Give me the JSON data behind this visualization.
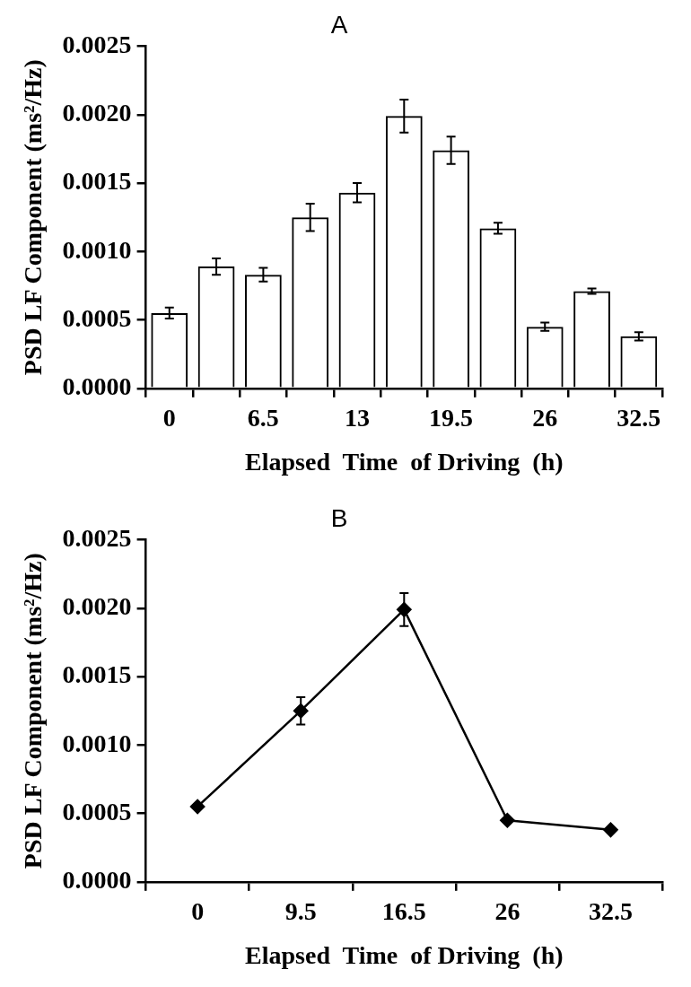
{
  "chart_data": [
    {
      "type": "bar",
      "title": "A",
      "xlabel": "Elapsed  Time  of Driving  (h)",
      "ylabel": "PSD LF Component (ms²/Hz)",
      "categories": [
        "0",
        null,
        "6.5",
        null,
        "13",
        null,
        "19.5",
        null,
        "26",
        null,
        "32.5"
      ],
      "values": [
        0.00055,
        0.00089,
        0.00083,
        0.00125,
        0.00143,
        0.00199,
        0.00174,
        0.00117,
        0.00045,
        0.00071,
        0.00038
      ],
      "errors": [
        4e-05,
        6e-05,
        5e-05,
        0.0001,
        7e-05,
        0.00012,
        0.0001,
        4e-05,
        3e-05,
        2e-05,
        3e-05
      ],
      "color": "#000000",
      "ylim": [
        0,
        0.0025
      ],
      "yticks": [
        {
          "value": 0,
          "label": "0.0000"
        },
        {
          "value": 0.0005,
          "label": "0.0005"
        },
        {
          "value": 0.001,
          "label": "0.0010"
        },
        {
          "value": 0.0015,
          "label": "0.0015"
        },
        {
          "value": 0.002,
          "label": "0.0020"
        },
        {
          "value": 0.0025,
          "label": "0.0025"
        }
      ],
      "legend": false
    },
    {
      "type": "line",
      "title": "B",
      "xlabel": "Elapsed  Time  of Driving  (h)",
      "ylabel": "PSD LF Component (ms²/Hz)",
      "categories": [
        "0",
        "9.5",
        "16.5",
        "26",
        "32.5"
      ],
      "values": [
        0.00055,
        0.00125,
        0.00199,
        0.00045,
        0.00038
      ],
      "errors": [
        null,
        0.0001,
        0.00012,
        null,
        null
      ],
      "color": "#000000",
      "marker": "diamond",
      "line_style": "solid",
      "ylim": [
        0,
        0.0025
      ],
      "yticks": [
        {
          "value": 0,
          "label": "0.0000"
        },
        {
          "value": 0.0005,
          "label": "0.0005"
        },
        {
          "value": 0.001,
          "label": "0.0010"
        },
        {
          "value": 0.0015,
          "label": "0.0015"
        },
        {
          "value": 0.002,
          "label": "0.0020"
        },
        {
          "value": 0.0025,
          "label": "0.0025"
        }
      ],
      "legend": false
    }
  ]
}
